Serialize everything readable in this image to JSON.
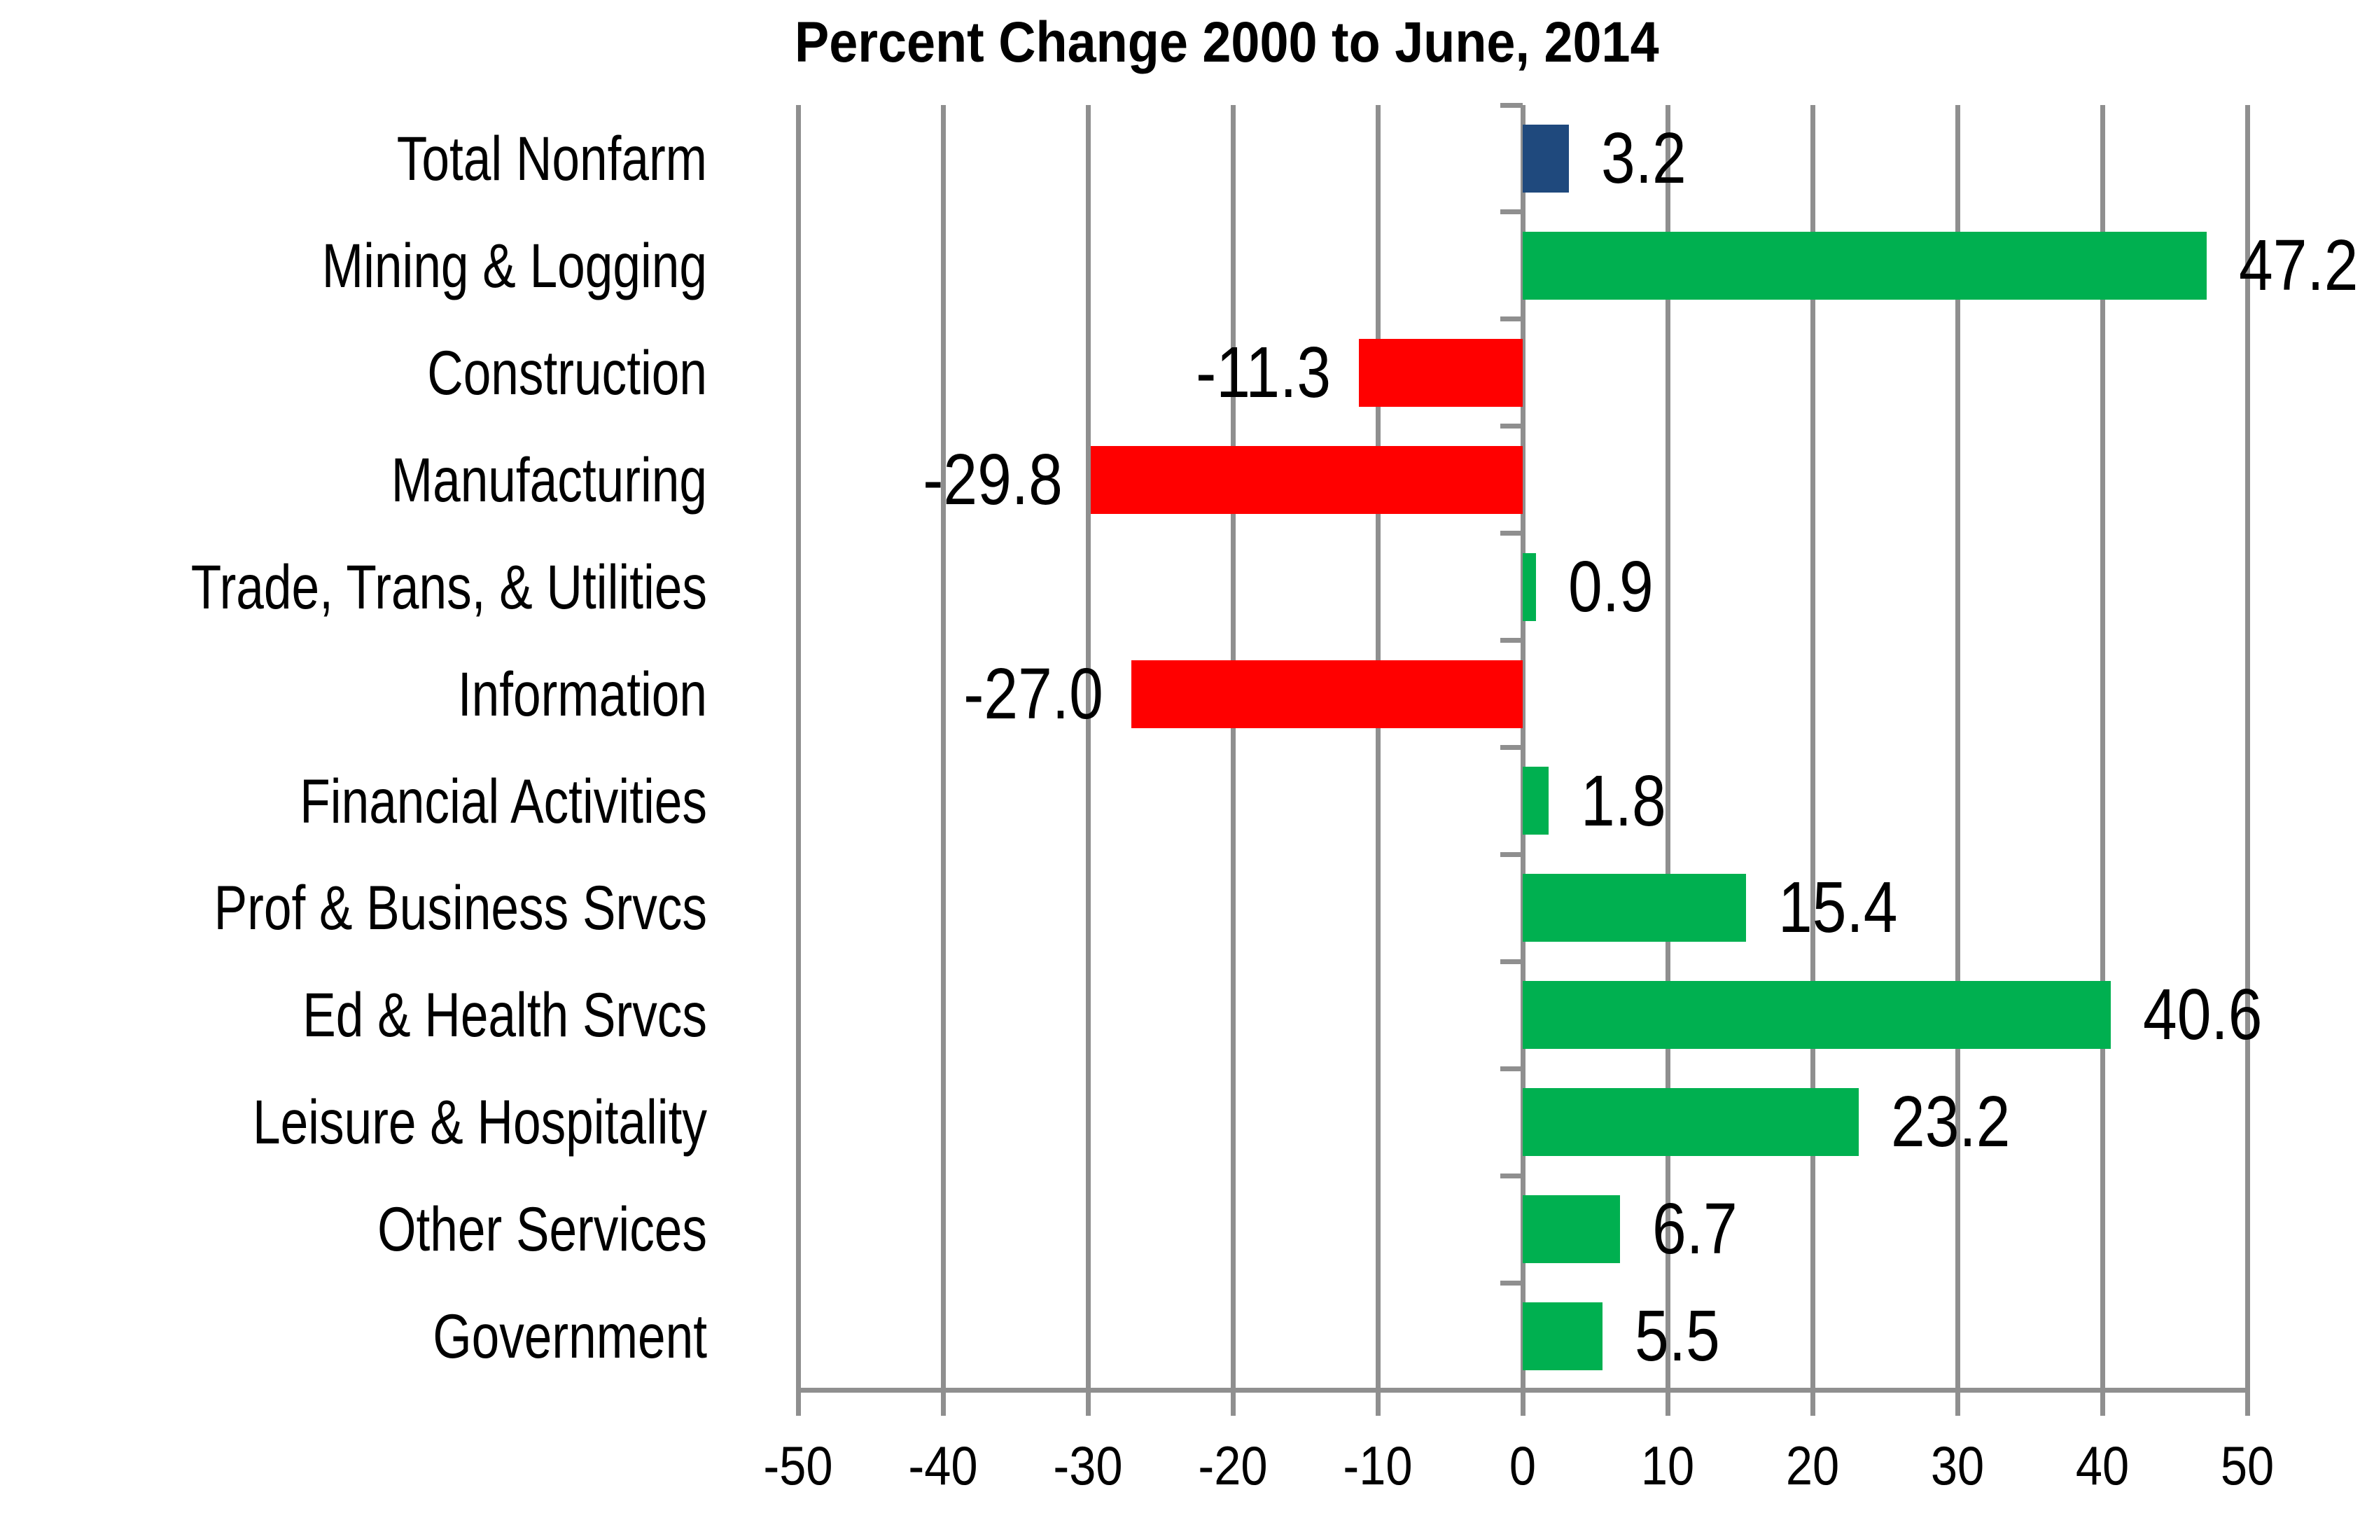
{
  "chart_data": {
    "type": "bar",
    "orientation": "horizontal",
    "title": "Percent Change 2000 to June, 2014",
    "categories": [
      "Total Nonfarm",
      "Mining & Logging",
      "Construction",
      "Manufacturing",
      "Trade, Trans, & Utilities",
      "Information",
      "Financial Activities",
      "Prof & Business Srvcs",
      "Ed & Health Srvcs",
      "Leisure & Hospitality",
      "Other Services",
      "Government"
    ],
    "values": [
      3.2,
      47.2,
      -11.3,
      -29.8,
      0.9,
      -27.0,
      1.8,
      15.4,
      40.6,
      23.2,
      6.7,
      5.5
    ],
    "value_labels": [
      "3.2",
      "47.2",
      "-11.3",
      "-29.8",
      "0.9",
      "-27.0",
      "1.8",
      "15.4",
      "40.6",
      "23.2",
      "6.7",
      "5.5"
    ],
    "bar_colors": [
      "#1F497D",
      "#00B050",
      "#FF0000",
      "#FF0000",
      "#00B050",
      "#FF0000",
      "#00B050",
      "#00B050",
      "#00B050",
      "#00B050",
      "#00B050",
      "#00B050"
    ],
    "xlim": [
      -50,
      50
    ],
    "x_ticks": [
      -50,
      -40,
      -30,
      -20,
      -10,
      0,
      10,
      20,
      30,
      40,
      50
    ],
    "x_tick_labels": [
      "-50",
      "-40",
      "-30",
      "-20",
      "-10",
      "0",
      "10",
      "20",
      "30",
      "40",
      "50"
    ],
    "xlabel": "",
    "ylabel": "",
    "grid": "vertical",
    "legend": "none",
    "colors": {
      "total_nonfarm_blue": "#1F497D",
      "positive_green": "#00B050",
      "negative_red": "#FF0000",
      "axis_gray": "#8F8F8F",
      "text": "#000000",
      "background": "#FFFFFF"
    }
  }
}
